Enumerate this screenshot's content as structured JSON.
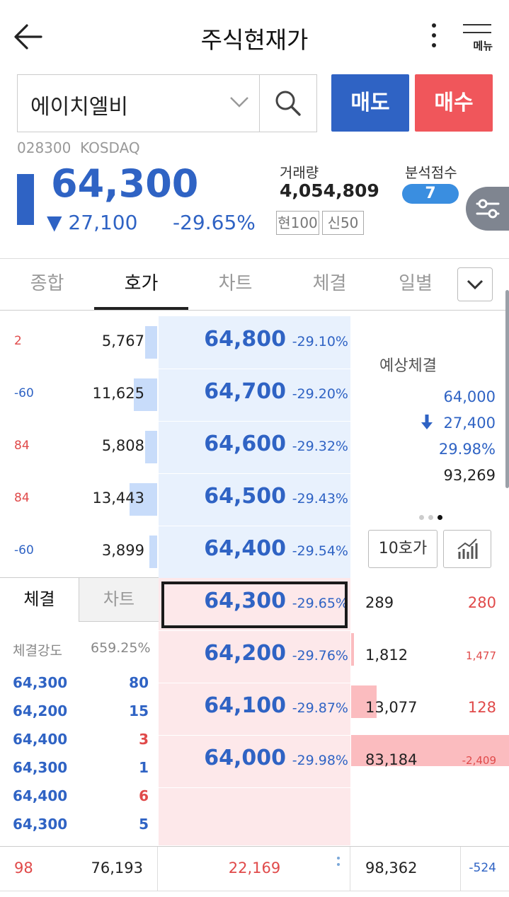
{
  "header": {
    "title": "주식현재가",
    "menu_label": "메뉴"
  },
  "search": {
    "stock_name": "에이치엘비"
  },
  "actions": {
    "sell_label": "매도",
    "buy_label": "매수"
  },
  "stock": {
    "code": "028300",
    "market": "KOSDAQ",
    "price": "64,300",
    "change": "▼ 27,100",
    "change_rate": "-29.65%",
    "volume_label": "거래량",
    "volume": "4,054,809",
    "badge_1": "현100",
    "badge_2": "신50",
    "score_label": "분석점수",
    "score": "7"
  },
  "tabs": [
    "종합",
    "호가",
    "차트",
    "체결",
    "일별"
  ],
  "asks": [
    {
      "delta": "2",
      "delta_color": "red",
      "qty": "5,767",
      "bar": 0.15,
      "price": "64,800",
      "rate": "-29.10%"
    },
    {
      "delta": "-60",
      "delta_color": "blue",
      "qty": "11,625",
      "bar": 0.3,
      "price": "64,700",
      "rate": "-29.20%"
    },
    {
      "delta": "84",
      "delta_color": "red",
      "qty": "5,808",
      "bar": 0.15,
      "price": "64,600",
      "rate": "-29.32%"
    },
    {
      "delta": "84",
      "delta_color": "red",
      "qty": "13,443",
      "bar": 0.35,
      "price": "64,500",
      "rate": "-29.43%"
    },
    {
      "delta": "-60",
      "delta_color": "blue",
      "qty": "3,899",
      "bar": 0.1,
      "price": "64,400",
      "rate": "-29.54%"
    }
  ],
  "expected": {
    "label": "예상체결",
    "price": "64,000",
    "change": "27,400",
    "rate": "29.98%",
    "volume": "93,269"
  },
  "controls": {
    "hoga10": "10호가"
  },
  "lower_tabs": {
    "trade": "체결",
    "chart": "차트"
  },
  "strength": {
    "label": "체결강도",
    "value": "659.25%"
  },
  "ticks": [
    {
      "price": "64,300",
      "qty": "80",
      "color": "blue"
    },
    {
      "price": "64,200",
      "qty": "15",
      "color": "blue"
    },
    {
      "price": "64,400",
      "qty": "3",
      "color": "red"
    },
    {
      "price": "64,300",
      "qty": "1",
      "color": "blue"
    },
    {
      "price": "64,400",
      "qty": "6",
      "color": "red"
    },
    {
      "price": "64,300",
      "qty": "5",
      "color": "blue"
    }
  ],
  "bids": [
    {
      "price": "64,300",
      "rate": "-29.65%",
      "qty": "289",
      "delta": "280",
      "bar": 0.0
    },
    {
      "price": "64,200",
      "rate": "-29.76%",
      "qty": "1,812",
      "delta": "1,477",
      "bar": 0.02
    },
    {
      "price": "64,100",
      "rate": "-29.87%",
      "qty": "13,077",
      "delta": "128",
      "bar": 0.16
    },
    {
      "price": "64,000",
      "rate": "-29.98%",
      "qty": "83,184",
      "delta": "-2,409",
      "bar": 1.0
    }
  ],
  "footer": {
    "ask_delta": "98",
    "ask_total": "76,193",
    "diff": "22,169",
    "bid_total": "98,362",
    "bid_delta": "-524"
  },
  "colors": {
    "blue": "#2f63c4",
    "red": "#e04a4a",
    "ask_bg": "#e8f1fd",
    "bid_bg": "#fde8ea"
  }
}
